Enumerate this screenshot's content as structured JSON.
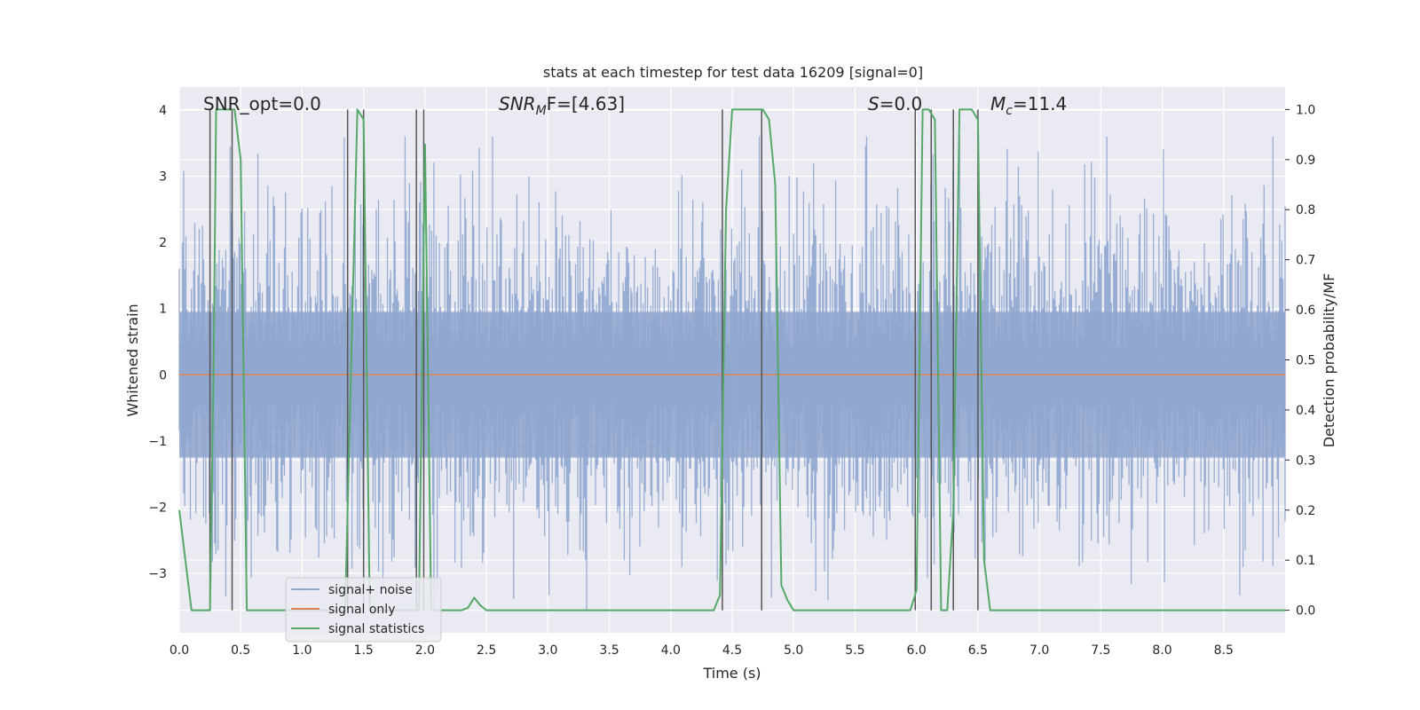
{
  "chart_data": {
    "type": "line",
    "title": "stats at each timestep for test data 16209 [signal=0]",
    "xlabel": "Time (s)",
    "ylabel": "Whitened strain",
    "ylabel_right": "Detection probability/MF",
    "xlim": [
      0.0,
      9.0
    ],
    "ylim": [
      -3.9,
      4.35
    ],
    "ylim_right": [
      -0.045,
      1.045
    ],
    "xticks": [
      "0.0",
      "0.5",
      "1.0",
      "1.5",
      "2.0",
      "2.5",
      "3.0",
      "3.5",
      "4.0",
      "4.5",
      "5.0",
      "5.5",
      "6.0",
      "6.5",
      "7.0",
      "7.5",
      "8.0",
      "8.5"
    ],
    "xtick_values": [
      0.0,
      0.5,
      1.0,
      1.5,
      2.0,
      2.5,
      3.0,
      3.5,
      4.0,
      4.5,
      5.0,
      5.5,
      6.0,
      6.5,
      7.0,
      7.5,
      8.0,
      8.5
    ],
    "yticks": [
      "−3",
      "−2",
      "−1",
      "0",
      "1",
      "2",
      "3",
      "4"
    ],
    "ytick_values": [
      -3,
      -2,
      -1,
      0,
      1,
      2,
      3,
      4
    ],
    "yticks_right": [
      "0.0",
      "0.1",
      "0.2",
      "0.3",
      "0.4",
      "0.5",
      "0.6",
      "0.7",
      "0.8",
      "0.9",
      "1.0"
    ],
    "ytick_values_right": [
      0.0,
      0.1,
      0.2,
      0.3,
      0.4,
      0.5,
      0.6,
      0.7,
      0.8,
      0.9,
      1.0
    ],
    "annotations": {
      "snr_opt": "SNR_opt=0.0",
      "snr_mf_sym": "SNR",
      "snr_mf_sub": "M",
      "snr_mf_rest": "F=[4.63]",
      "s_sym": "S",
      "s_rest": "=0.0",
      "mc_sym": "M",
      "mc_sub": "c",
      "mc_rest": "=11.4"
    },
    "series": [
      {
        "name": "signal+ noise",
        "color": "#8fa6cf",
        "description": "whitened noisy strain, approx zero mean, unit variance, peaks to about 3.6"
      },
      {
        "name": "signal only",
        "color": "#dd8452",
        "values_constant": 0.0
      },
      {
        "name": "signal statistics",
        "color": "#55a868",
        "x": [
          0.0,
          0.05,
          0.1,
          0.25,
          0.28,
          0.3,
          0.42,
          0.45,
          0.5,
          0.55,
          0.6,
          1.0,
          1.35,
          1.4,
          1.45,
          1.5,
          1.55,
          1.6,
          1.9,
          1.95,
          2.0,
          2.05,
          2.1,
          2.2,
          2.3,
          2.35,
          2.4,
          2.45,
          2.5,
          4.35,
          4.4,
          4.45,
          4.5,
          4.75,
          4.8,
          4.85,
          4.9,
          4.95,
          5.0,
          5.95,
          6.0,
          6.05,
          6.1,
          6.15,
          6.2,
          6.25,
          6.3,
          6.35,
          6.4,
          6.45,
          6.5,
          6.55,
          6.6,
          6.65,
          9.0
        ],
        "values": [
          0.2,
          0.1,
          0.0,
          0.0,
          0.5,
          1.0,
          1.0,
          1.0,
          0.9,
          0.0,
          0.0,
          0.0,
          0.0,
          0.5,
          1.0,
          0.98,
          0.0,
          0.0,
          0.0,
          0.0,
          0.93,
          0.0,
          0.0,
          0.0,
          0.0,
          0.005,
          0.025,
          0.01,
          0.0,
          0.0,
          0.03,
          0.8,
          1.0,
          1.0,
          0.98,
          0.85,
          0.05,
          0.02,
          0.0,
          0.0,
          0.04,
          1.0,
          1.0,
          0.98,
          0.0,
          0.0,
          0.2,
          1.0,
          1.0,
          1.0,
          0.98,
          0.1,
          0.0,
          0.0,
          0.0
        ]
      }
    ],
    "vertical_lines_x": [
      0.25,
      0.43,
      1.37,
      1.5,
      1.93,
      1.99,
      4.42,
      4.74,
      5.99,
      6.12,
      6.3,
      6.5
    ],
    "legend": {
      "position": "lower-left",
      "entries": [
        "signal+ noise",
        "signal only",
        "signal statistics"
      ]
    }
  }
}
